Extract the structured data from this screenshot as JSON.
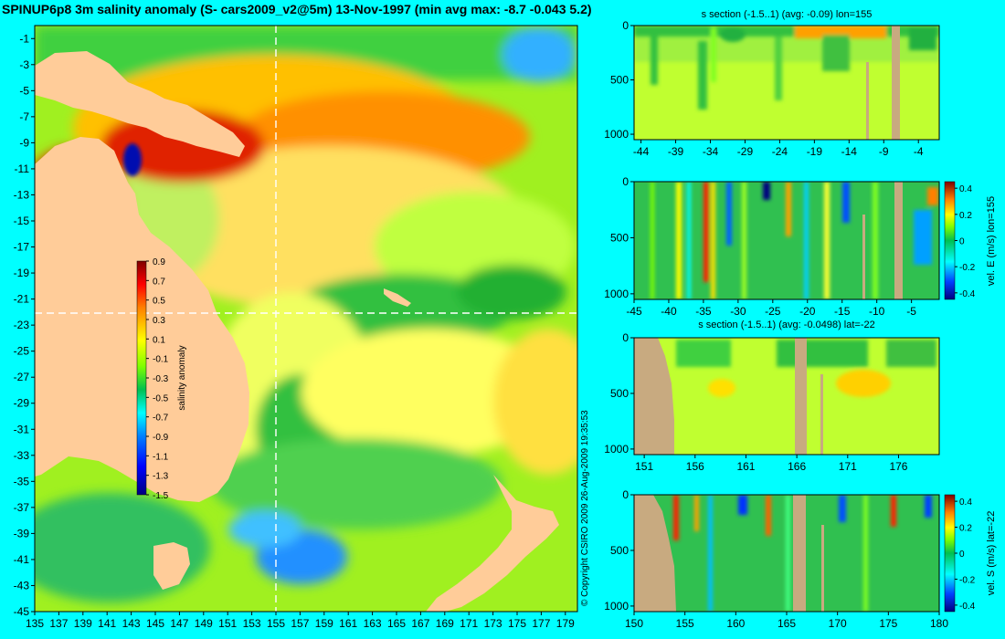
{
  "title": "SPINUP6p8 3m salinity anomaly (S- cars2009_v2@5m) 13-Nov-1997 (min avg max: -8.7 -0.043 5.2)",
  "copyright": "© Copyright CSIRO 2009   26-Aug-2009 19:35:53",
  "colors": {
    "background": "#00ffff",
    "land": "#ffcc99",
    "section_land": "#c8aa80",
    "colormap": [
      "#00007f",
      "#0000ff",
      "#0080ff",
      "#00ffff",
      "#00c050",
      "#80ff00",
      "#ffff00",
      "#ff8000",
      "#ff0000",
      "#7f0000"
    ]
  },
  "chart_data": [
    {
      "id": "map",
      "type": "heatmap",
      "title": "",
      "xlabel": "",
      "ylabel": "",
      "x_ticks": [
        135,
        137,
        139,
        141,
        143,
        145,
        147,
        149,
        151,
        153,
        155,
        157,
        159,
        161,
        163,
        165,
        167,
        169,
        171,
        173,
        175,
        177,
        179
      ],
      "y_ticks": [
        -1,
        -3,
        -5,
        -7,
        -9,
        -11,
        -13,
        -15,
        -17,
        -19,
        -21,
        -23,
        -25,
        -27,
        -29,
        -31,
        -33,
        -35,
        -37,
        -39,
        -41,
        -43,
        -45
      ],
      "xlim": [
        135,
        180
      ],
      "ylim": [
        -45,
        0
      ],
      "section_lines": {
        "lon": 155,
        "lat": -22
      },
      "colorbar": {
        "label": "salinity anomaly",
        "ticks": [
          "0.9",
          "0.7",
          "0.5",
          "0.3",
          "0.1",
          "-0.1",
          "-0.3",
          "-0.5",
          "-0.7",
          "-0.9",
          "-1.1",
          "-1.3",
          "-1.5"
        ],
        "range": [
          -1.5,
          0.9
        ]
      }
    },
    {
      "id": "panel1",
      "type": "heatmap",
      "title": "s section (-1.5..1) (avg: -0.09) lon=155",
      "x_ticks": [
        "-44",
        "-39",
        "-34",
        "-29",
        "-24",
        "-19",
        "-14",
        "-9",
        "-4"
      ],
      "y_ticks": [
        "0",
        "500",
        "1000"
      ],
      "xlim": [
        -45,
        -1
      ],
      "ylim": [
        1050,
        0
      ]
    },
    {
      "id": "panel2",
      "type": "heatmap",
      "title": "",
      "x_ticks": [
        "-45",
        "-40",
        "-35",
        "-30",
        "-25",
        "-20",
        "-15",
        "-10",
        "-5"
      ],
      "y_ticks": [
        "0",
        "500",
        "1000"
      ],
      "xlim": [
        -45,
        -1
      ],
      "ylim": [
        1050,
        0
      ],
      "colorbar": {
        "label": "vel. E (m/s) lon=155",
        "ticks": [
          "0.4",
          "0.2",
          "0",
          "-0.2",
          "-0.4"
        ],
        "range": [
          -0.45,
          0.45
        ]
      }
    },
    {
      "id": "panel3",
      "type": "heatmap",
      "title": "s section (-1.5..1) (avg: -0.0498) lat=-22",
      "x_ticks": [
        "151",
        "156",
        "161",
        "166",
        "171",
        "176"
      ],
      "y_ticks": [
        "0",
        "500",
        "1000"
      ],
      "xlim": [
        150,
        180
      ],
      "ylim": [
        1050,
        0
      ]
    },
    {
      "id": "panel4",
      "type": "heatmap",
      "title": "",
      "x_ticks": [
        "150",
        "155",
        "160",
        "165",
        "170",
        "175",
        "180"
      ],
      "y_ticks": [
        "0",
        "500",
        "1000"
      ],
      "xlim": [
        150,
        180
      ],
      "ylim": [
        1050,
        0
      ],
      "colorbar": {
        "label": "vel. S (m/s) lat=-22",
        "ticks": [
          "0.4",
          "0.2",
          "0",
          "-0.2",
          "-0.4"
        ],
        "range": [
          -0.45,
          0.45
        ]
      }
    }
  ]
}
